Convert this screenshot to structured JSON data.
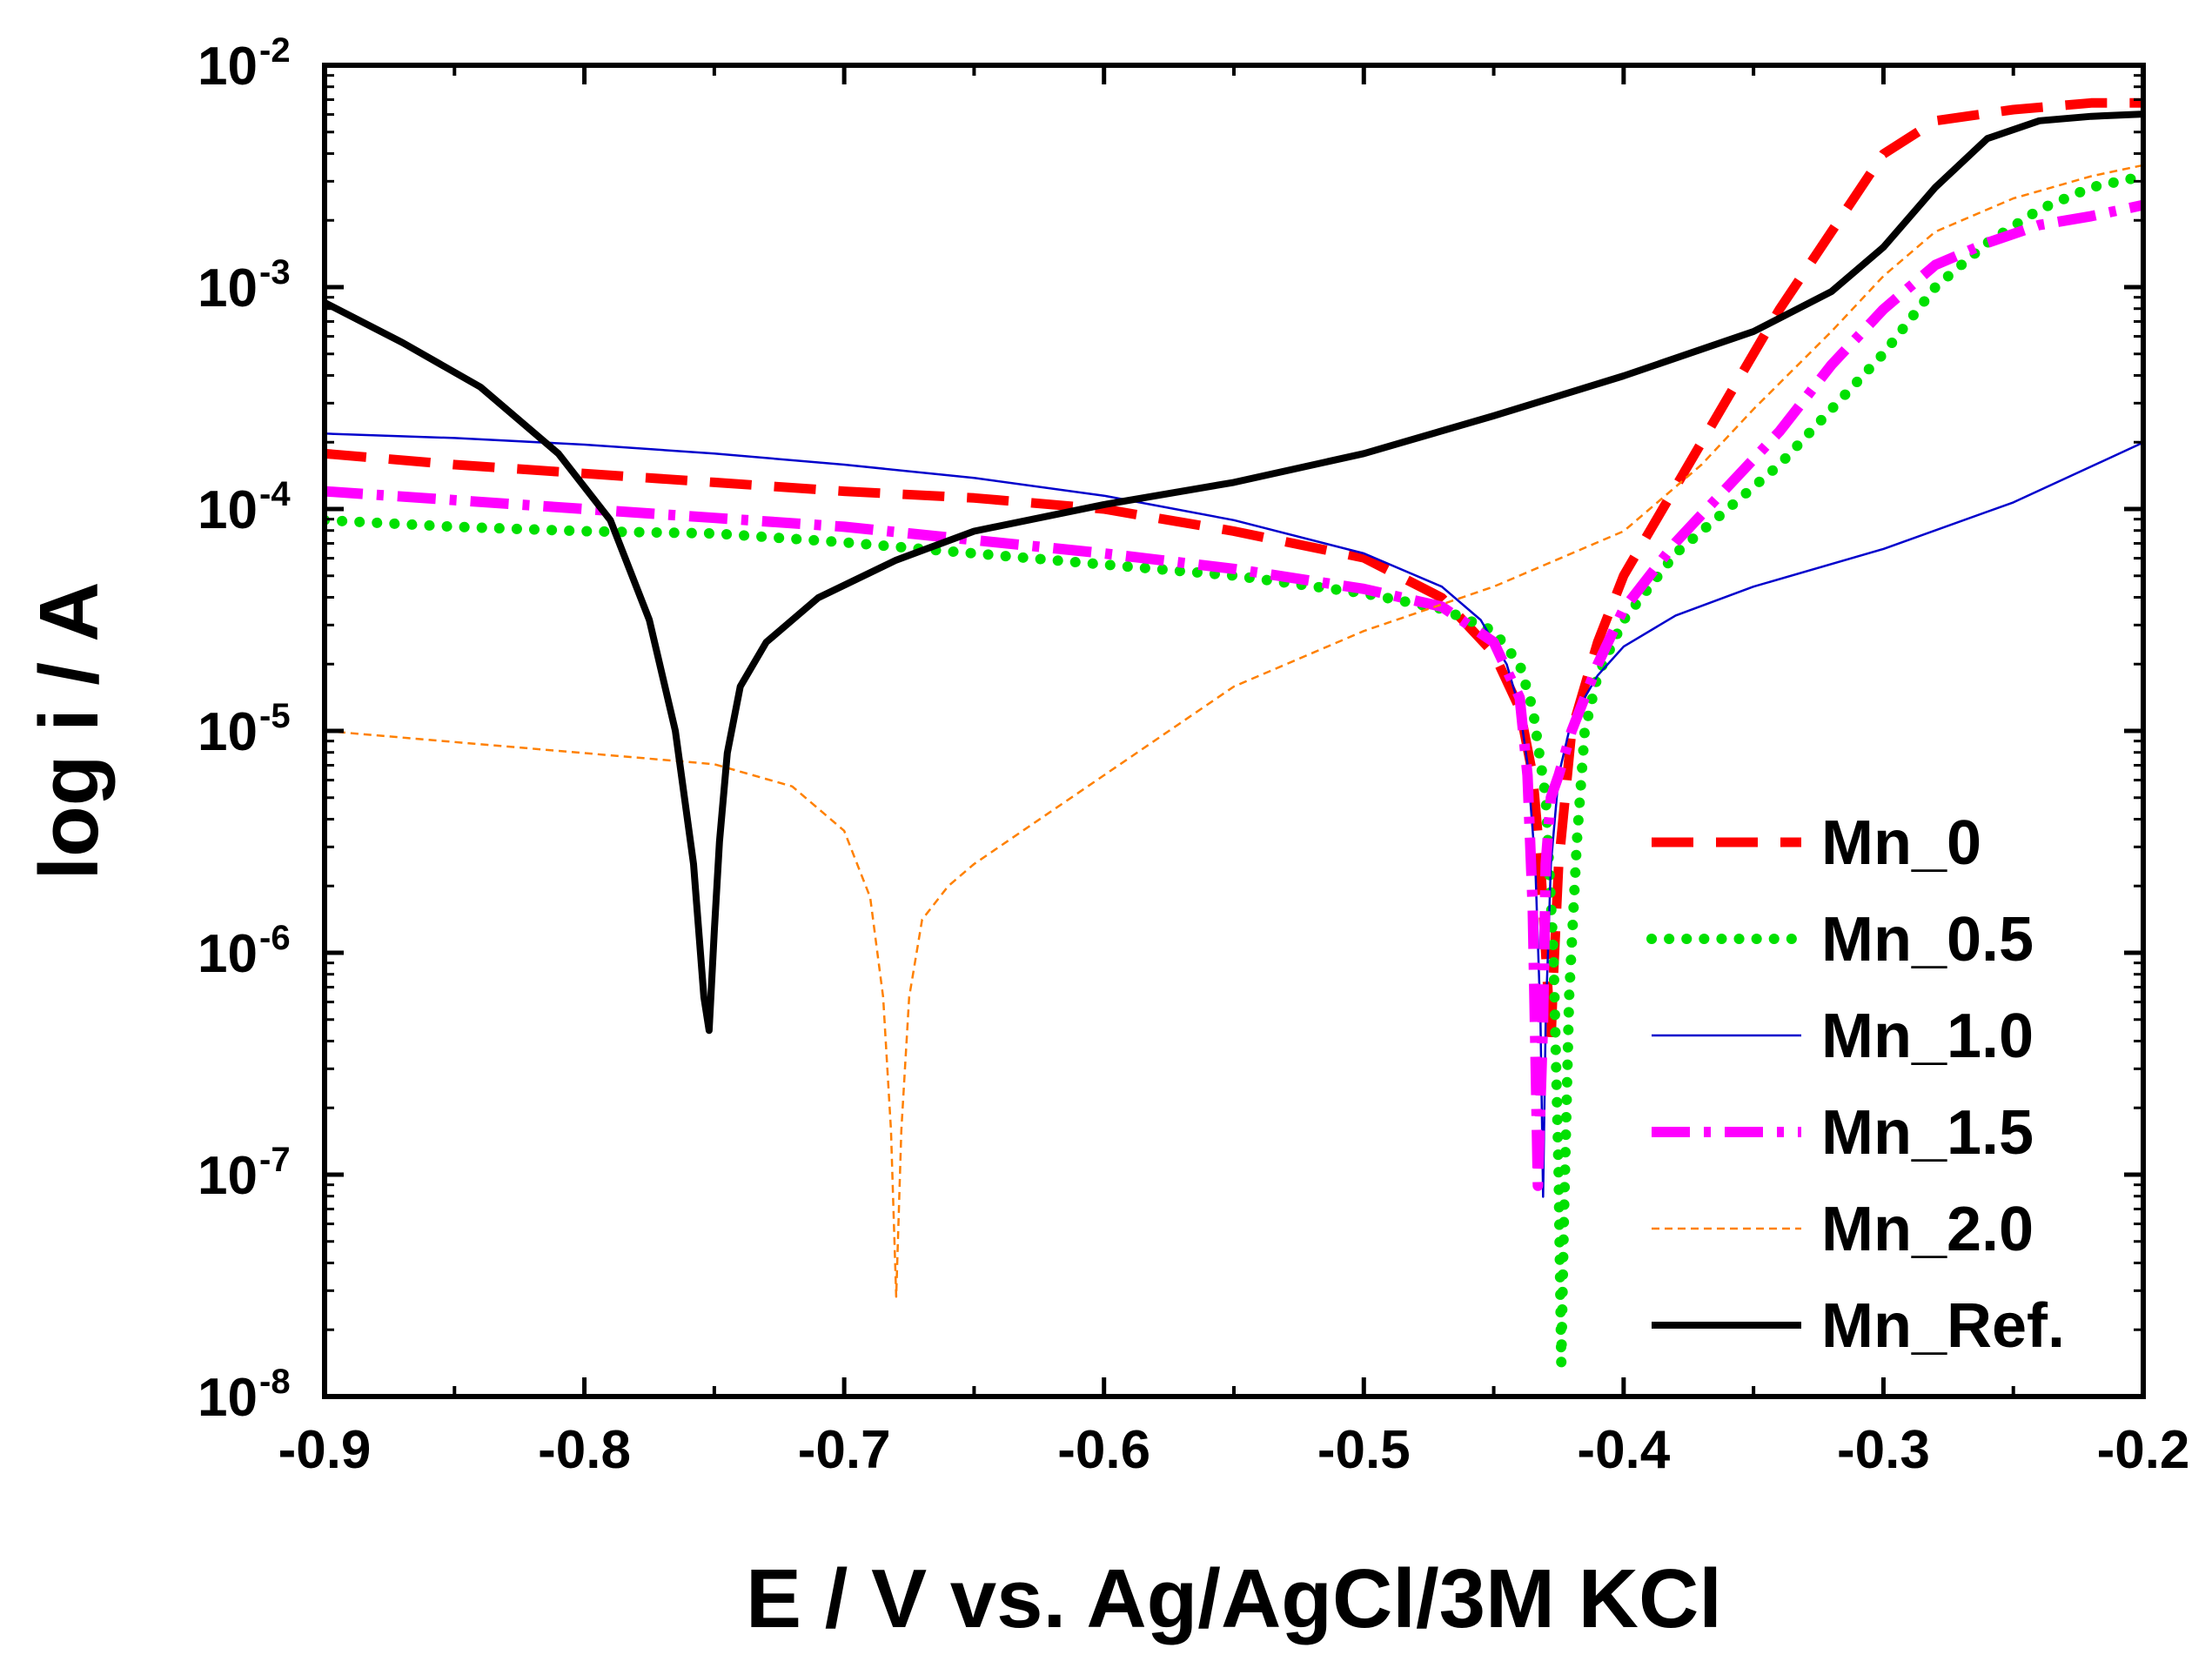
{
  "chart_data": {
    "type": "line",
    "title": "",
    "xlabel": "E / V vs. Ag/AgCl/3M KCl",
    "ylabel": "log i / A",
    "xlim": [
      -0.9,
      -0.2
    ],
    "ylim_log10": [
      -8,
      -2
    ],
    "yscale": "log",
    "x_ticks": [
      {
        "value": -0.9,
        "label": "-0.9"
      },
      {
        "value": -0.8,
        "label": "-0.8"
      },
      {
        "value": -0.7,
        "label": "-0.7"
      },
      {
        "value": -0.6,
        "label": "-0.6"
      },
      {
        "value": -0.5,
        "label": "-0.5"
      },
      {
        "value": -0.4,
        "label": "-0.4"
      },
      {
        "value": -0.3,
        "label": "-0.3"
      },
      {
        "value": -0.2,
        "label": "-0.2"
      }
    ],
    "y_ticks": [
      {
        "exp": -2,
        "base": "10",
        "sup": "-2"
      },
      {
        "exp": -3,
        "base": "10",
        "sup": "-3"
      },
      {
        "exp": -4,
        "base": "10",
        "sup": "-4"
      },
      {
        "exp": -5,
        "base": "10",
        "sup": "-5"
      },
      {
        "exp": -6,
        "base": "10",
        "sup": "-6"
      },
      {
        "exp": -7,
        "base": "10",
        "sup": "-7"
      },
      {
        "exp": -8,
        "base": "10",
        "sup": "-8"
      }
    ],
    "legend_position": "bottom-right",
    "series": [
      {
        "name": "Mn_0",
        "color": "#ff0000",
        "style": "dashed-long",
        "points": [
          [
            -0.9,
            -3.75
          ],
          [
            -0.85,
            -3.8
          ],
          [
            -0.8,
            -3.84
          ],
          [
            -0.75,
            -3.88
          ],
          [
            -0.7,
            -3.92
          ],
          [
            -0.65,
            -3.95
          ],
          [
            -0.6,
            -4.0
          ],
          [
            -0.55,
            -4.1
          ],
          [
            -0.5,
            -4.22
          ],
          [
            -0.47,
            -4.4
          ],
          [
            -0.45,
            -4.65
          ],
          [
            -0.44,
            -4.9
          ],
          [
            -0.435,
            -5.2
          ],
          [
            -0.432,
            -5.6
          ],
          [
            -0.43,
            -6.0
          ],
          [
            -0.428,
            -6.4
          ],
          [
            -0.427,
            -6.1
          ],
          [
            -0.425,
            -5.6
          ],
          [
            -0.42,
            -5.0
          ],
          [
            -0.41,
            -4.6
          ],
          [
            -0.4,
            -4.3
          ],
          [
            -0.38,
            -3.9
          ],
          [
            -0.36,
            -3.5
          ],
          [
            -0.34,
            -3.1
          ],
          [
            -0.32,
            -2.75
          ],
          [
            -0.3,
            -2.4
          ],
          [
            -0.28,
            -2.25
          ],
          [
            -0.25,
            -2.2
          ],
          [
            -0.22,
            -2.17
          ],
          [
            -0.2,
            -2.17
          ]
        ]
      },
      {
        "name": "Mn_0.5",
        "color": "#00e000",
        "style": "dotted",
        "points": [
          [
            -0.9,
            -4.05
          ],
          [
            -0.85,
            -4.08
          ],
          [
            -0.8,
            -4.1
          ],
          [
            -0.75,
            -4.11
          ],
          [
            -0.7,
            -4.15
          ],
          [
            -0.65,
            -4.2
          ],
          [
            -0.6,
            -4.25
          ],
          [
            -0.55,
            -4.3
          ],
          [
            -0.5,
            -4.38
          ],
          [
            -0.47,
            -4.45
          ],
          [
            -0.45,
            -4.55
          ],
          [
            -0.44,
            -4.7
          ],
          [
            -0.435,
            -4.9
          ],
          [
            -0.43,
            -5.3
          ],
          [
            -0.427,
            -6.0
          ],
          [
            -0.425,
            -7.0
          ],
          [
            -0.424,
            -7.85
          ],
          [
            -0.423,
            -7.2
          ],
          [
            -0.421,
            -6.2
          ],
          [
            -0.418,
            -5.5
          ],
          [
            -0.415,
            -5.0
          ],
          [
            -0.41,
            -4.75
          ],
          [
            -0.4,
            -4.5
          ],
          [
            -0.38,
            -4.2
          ],
          [
            -0.36,
            -4.0
          ],
          [
            -0.34,
            -3.8
          ],
          [
            -0.32,
            -3.55
          ],
          [
            -0.3,
            -3.3
          ],
          [
            -0.28,
            -3.0
          ],
          [
            -0.26,
            -2.8
          ],
          [
            -0.24,
            -2.65
          ],
          [
            -0.22,
            -2.55
          ],
          [
            -0.2,
            -2.5
          ]
        ]
      },
      {
        "name": "Mn_1.0",
        "color": "#0000cc",
        "style": "thin-solid",
        "points": [
          [
            -0.9,
            -3.66
          ],
          [
            -0.85,
            -3.68
          ],
          [
            -0.8,
            -3.71
          ],
          [
            -0.75,
            -3.75
          ],
          [
            -0.7,
            -3.8
          ],
          [
            -0.65,
            -3.86
          ],
          [
            -0.6,
            -3.94
          ],
          [
            -0.55,
            -4.05
          ],
          [
            -0.5,
            -4.2
          ],
          [
            -0.47,
            -4.35
          ],
          [
            -0.455,
            -4.5
          ],
          [
            -0.445,
            -4.7
          ],
          [
            -0.44,
            -4.9
          ],
          [
            -0.437,
            -5.15
          ],
          [
            -0.434,
            -5.6
          ],
          [
            -0.432,
            -6.3
          ],
          [
            -0.431,
            -7.1
          ],
          [
            -0.43,
            -6.3
          ],
          [
            -0.428,
            -5.6
          ],
          [
            -0.425,
            -5.2
          ],
          [
            -0.42,
            -4.95
          ],
          [
            -0.41,
            -4.75
          ],
          [
            -0.4,
            -4.62
          ],
          [
            -0.38,
            -4.48
          ],
          [
            -0.35,
            -4.35
          ],
          [
            -0.3,
            -4.18
          ],
          [
            -0.25,
            -3.97
          ],
          [
            -0.2,
            -3.7
          ]
        ]
      },
      {
        "name": "Mn_1.5",
        "color": "#ff00ff",
        "style": "dash-dot",
        "points": [
          [
            -0.9,
            -3.92
          ],
          [
            -0.85,
            -3.96
          ],
          [
            -0.8,
            -4.0
          ],
          [
            -0.75,
            -4.04
          ],
          [
            -0.7,
            -4.08
          ],
          [
            -0.65,
            -4.14
          ],
          [
            -0.6,
            -4.2
          ],
          [
            -0.55,
            -4.27
          ],
          [
            -0.5,
            -4.36
          ],
          [
            -0.47,
            -4.44
          ],
          [
            -0.45,
            -4.6
          ],
          [
            -0.44,
            -4.85
          ],
          [
            -0.437,
            -5.2
          ],
          [
            -0.435,
            -5.8
          ],
          [
            -0.434,
            -6.4
          ],
          [
            -0.433,
            -7.05
          ],
          [
            -0.431,
            -6.3
          ],
          [
            -0.43,
            -5.6
          ],
          [
            -0.428,
            -5.3
          ],
          [
            -0.425,
            -5.2
          ],
          [
            -0.42,
            -5.0
          ],
          [
            -0.41,
            -4.7
          ],
          [
            -0.4,
            -4.45
          ],
          [
            -0.38,
            -4.15
          ],
          [
            -0.36,
            -3.9
          ],
          [
            -0.34,
            -3.65
          ],
          [
            -0.32,
            -3.35
          ],
          [
            -0.3,
            -3.1
          ],
          [
            -0.28,
            -2.9
          ],
          [
            -0.26,
            -2.8
          ],
          [
            -0.24,
            -2.72
          ],
          [
            -0.22,
            -2.68
          ],
          [
            -0.2,
            -2.63
          ]
        ]
      },
      {
        "name": "Mn_2.0",
        "color": "#ff8000",
        "style": "thin-dashed",
        "points": [
          [
            -0.9,
            -5.0
          ],
          [
            -0.85,
            -5.05
          ],
          [
            -0.8,
            -5.1
          ],
          [
            -0.75,
            -5.15
          ],
          [
            -0.72,
            -5.25
          ],
          [
            -0.7,
            -5.45
          ],
          [
            -0.69,
            -5.75
          ],
          [
            -0.685,
            -6.2
          ],
          [
            -0.682,
            -6.8
          ],
          [
            -0.68,
            -7.55
          ],
          [
            -0.678,
            -6.8
          ],
          [
            -0.675,
            -6.2
          ],
          [
            -0.67,
            -5.85
          ],
          [
            -0.66,
            -5.7
          ],
          [
            -0.65,
            -5.6
          ],
          [
            -0.6,
            -5.2
          ],
          [
            -0.55,
            -4.8
          ],
          [
            -0.5,
            -4.55
          ],
          [
            -0.45,
            -4.35
          ],
          [
            -0.4,
            -4.1
          ],
          [
            -0.37,
            -3.8
          ],
          [
            -0.35,
            -3.55
          ],
          [
            -0.32,
            -3.2
          ],
          [
            -0.3,
            -2.95
          ],
          [
            -0.28,
            -2.75
          ],
          [
            -0.25,
            -2.6
          ],
          [
            -0.22,
            -2.5
          ],
          [
            -0.2,
            -2.45
          ]
        ]
      },
      {
        "name": "Mn_Ref.",
        "color": "#000000",
        "style": "thick-solid",
        "points": [
          [
            -0.9,
            -3.07
          ],
          [
            -0.87,
            -3.25
          ],
          [
            -0.84,
            -3.45
          ],
          [
            -0.81,
            -3.75
          ],
          [
            -0.79,
            -4.05
          ],
          [
            -0.775,
            -4.5
          ],
          [
            -0.765,
            -5.0
          ],
          [
            -0.758,
            -5.6
          ],
          [
            -0.754,
            -6.2
          ],
          [
            -0.752,
            -6.35
          ],
          [
            -0.75,
            -5.9
          ],
          [
            -0.748,
            -5.5
          ],
          [
            -0.745,
            -5.1
          ],
          [
            -0.74,
            -4.8
          ],
          [
            -0.73,
            -4.6
          ],
          [
            -0.71,
            -4.4
          ],
          [
            -0.68,
            -4.23
          ],
          [
            -0.65,
            -4.1
          ],
          [
            -0.6,
            -3.98
          ],
          [
            -0.55,
            -3.88
          ],
          [
            -0.5,
            -3.75
          ],
          [
            -0.45,
            -3.58
          ],
          [
            -0.4,
            -3.4
          ],
          [
            -0.35,
            -3.2
          ],
          [
            -0.32,
            -3.02
          ],
          [
            -0.3,
            -2.82
          ],
          [
            -0.28,
            -2.55
          ],
          [
            -0.26,
            -2.33
          ],
          [
            -0.24,
            -2.25
          ],
          [
            -0.22,
            -2.23
          ],
          [
            -0.2,
            -2.22
          ]
        ]
      }
    ]
  }
}
